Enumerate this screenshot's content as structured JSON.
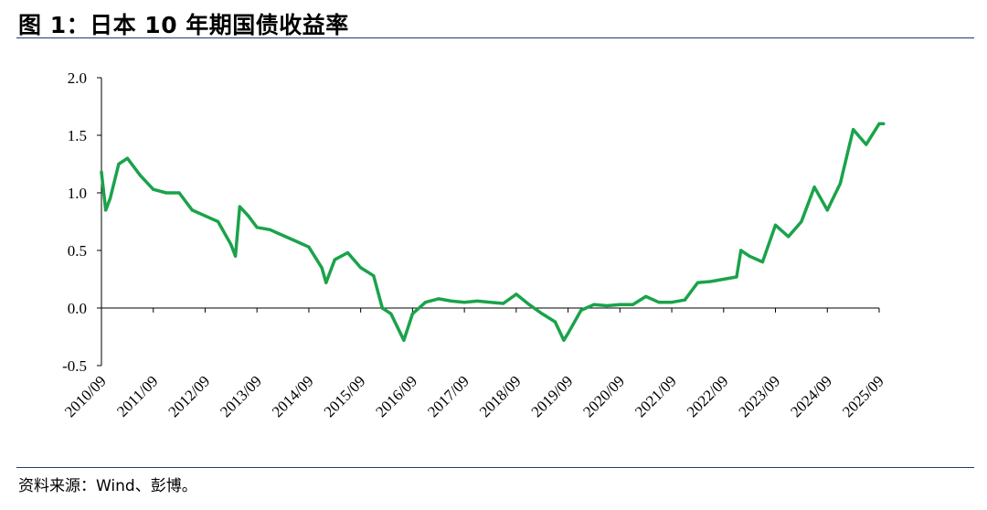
{
  "header": {
    "title": "图 1：日本 10 年期国债收益率"
  },
  "footer": {
    "source": "资料来源：Wind、彭博。"
  },
  "colors": {
    "line": "#1aa34a",
    "rule": "#1f3b6e",
    "axis": "#000000"
  },
  "chart_data": {
    "type": "line",
    "title": "",
    "xlabel": "",
    "ylabel": "",
    "ylim": [
      -0.5,
      2.0
    ],
    "yticks": [
      -0.5,
      0.0,
      0.5,
      1.0,
      1.5,
      2.0
    ],
    "ytick_labels": [
      "-0.5",
      "0.0",
      "0.5",
      "1.0",
      "1.5",
      "2.0"
    ],
    "xtick_labels": [
      "2010/09",
      "2011/09",
      "2012/09",
      "2013/09",
      "2014/09",
      "2015/09",
      "2016/09",
      "2017/09",
      "2018/09",
      "2019/09",
      "2020/09",
      "2021/09",
      "2022/09",
      "2023/09",
      "2024/09",
      "2025/09"
    ],
    "grid": false,
    "legend": "none",
    "series": [
      {
        "name": "",
        "x": [
          "2010/09",
          "2010/10",
          "2010/11",
          "2011/01",
          "2011/03",
          "2011/06",
          "2011/09",
          "2011/12",
          "2012/03",
          "2012/06",
          "2012/09",
          "2012/12",
          "2013/03",
          "2013/04",
          "2013/05",
          "2013/07",
          "2013/09",
          "2013/12",
          "2014/03",
          "2014/06",
          "2014/09",
          "2014/12",
          "2015/01",
          "2015/03",
          "2015/06",
          "2015/09",
          "2015/12",
          "2016/02",
          "2016/04",
          "2016/07",
          "2016/09",
          "2016/12",
          "2017/03",
          "2017/06",
          "2017/09",
          "2017/12",
          "2018/03",
          "2018/06",
          "2018/09",
          "2018/12",
          "2019/03",
          "2019/06",
          "2019/08",
          "2019/09",
          "2019/12",
          "2020/03",
          "2020/06",
          "2020/09",
          "2020/12",
          "2021/03",
          "2021/06",
          "2021/09",
          "2021/12",
          "2022/03",
          "2022/06",
          "2022/09",
          "2022/12",
          "2023/01",
          "2023/03",
          "2023/06",
          "2023/09",
          "2023/12",
          "2024/03",
          "2024/06",
          "2024/09",
          "2024/12",
          "2025/03",
          "2025/06",
          "2025/09",
          "2025/10"
        ],
        "y": [
          1.18,
          0.85,
          0.95,
          1.25,
          1.3,
          1.15,
          1.03,
          1.0,
          1.0,
          0.85,
          0.8,
          0.75,
          0.55,
          0.45,
          0.88,
          0.8,
          0.7,
          0.68,
          0.63,
          0.58,
          0.53,
          0.35,
          0.22,
          0.42,
          0.48,
          0.35,
          0.28,
          0.0,
          -0.05,
          -0.28,
          -0.05,
          0.05,
          0.08,
          0.06,
          0.05,
          0.06,
          0.05,
          0.04,
          0.12,
          0.03,
          -0.05,
          -0.12,
          -0.28,
          -0.22,
          -0.02,
          0.03,
          0.02,
          0.03,
          0.03,
          0.1,
          0.05,
          0.05,
          0.07,
          0.22,
          0.23,
          0.25,
          0.27,
          0.5,
          0.45,
          0.4,
          0.72,
          0.62,
          0.75,
          1.05,
          0.85,
          1.08,
          1.55,
          1.42,
          1.6,
          1.6
        ]
      }
    ]
  }
}
